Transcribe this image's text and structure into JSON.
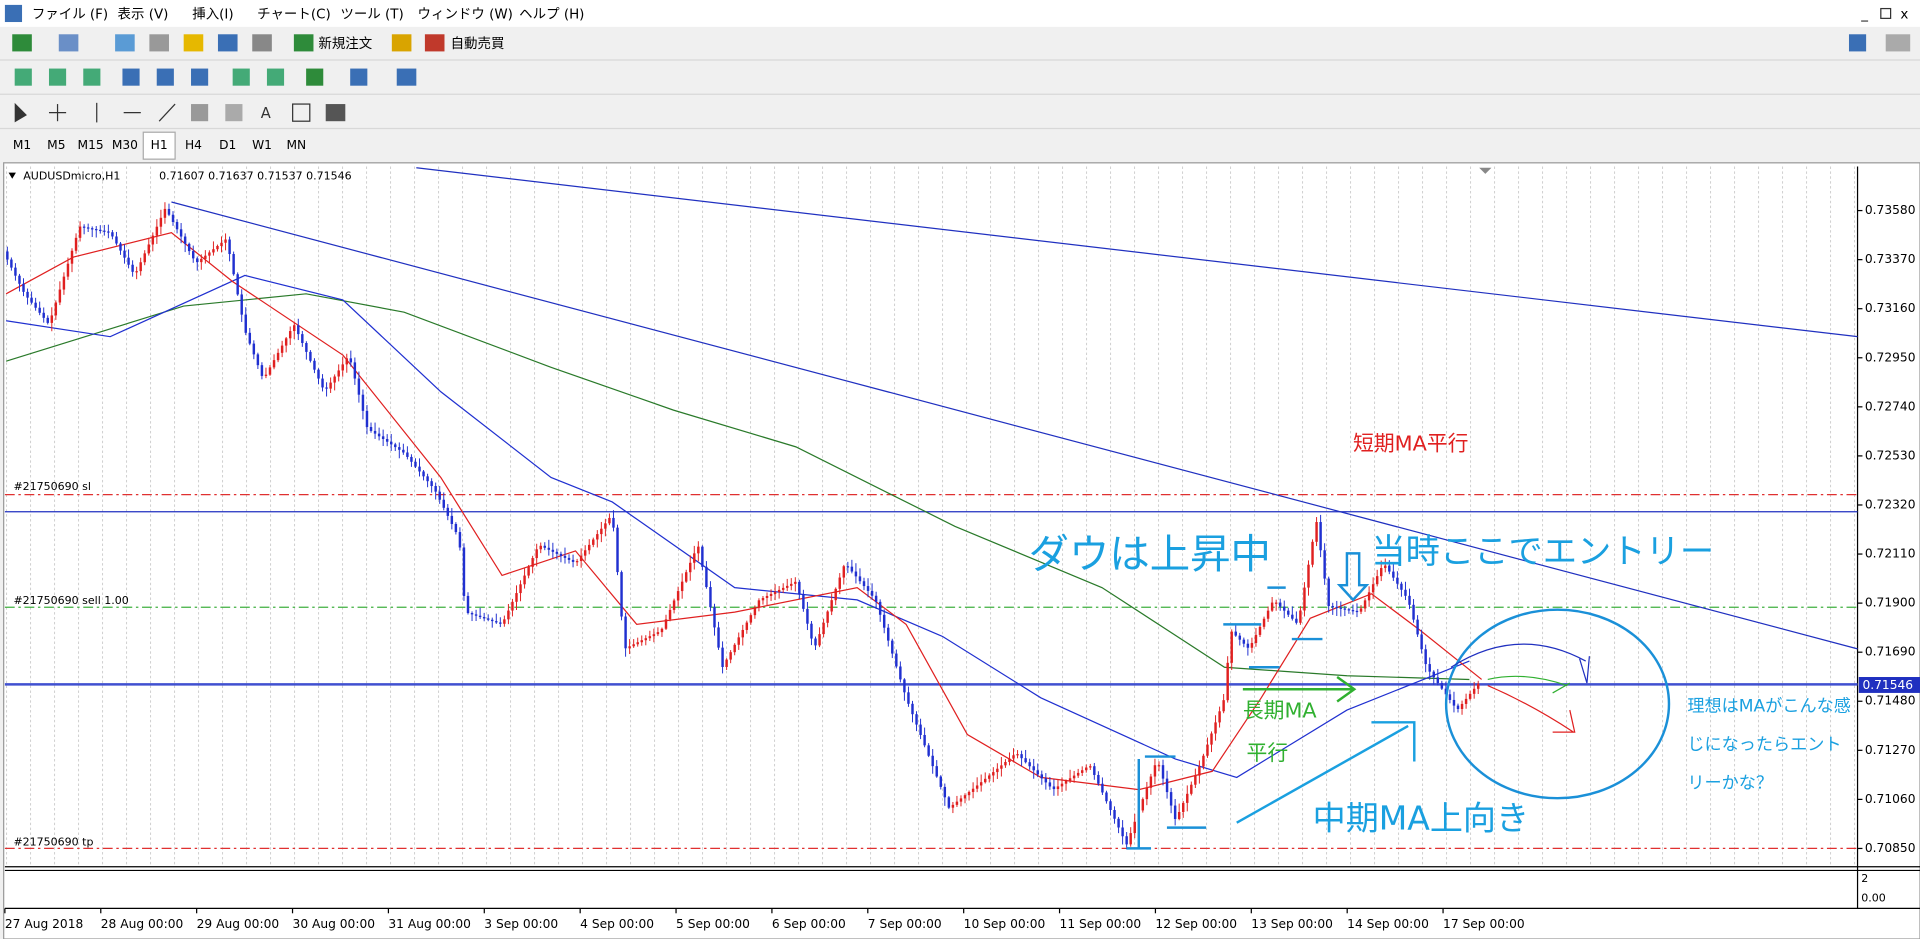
{
  "menu": [
    "ファイル (F)",
    "表示 (V)",
    "挿入(I)",
    "チャート(C)",
    "ツール (T)",
    "ウィンドウ (W)",
    "ヘルプ (H)"
  ],
  "toolbar": {
    "new_order": "新規注文",
    "auto_trading": "自動売買"
  },
  "timeframes": [
    "M1",
    "M5",
    "M15",
    "M30",
    "H1",
    "H4",
    "D1",
    "W1",
    "MN"
  ],
  "chart": {
    "symbol": "AUDUSDmicro,H1",
    "ohlc": "0.71607 0.71637 0.71537 0.71546",
    "price_ticks": [
      "0.73580",
      "0.73370",
      "0.73160",
      "0.72950",
      "0.72740",
      "0.72530",
      "0.72320",
      "0.72110",
      "0.71900",
      "0.71690",
      "0.71480",
      "0.71270",
      "0.71060",
      "0.70850"
    ],
    "current_price": "0.71546",
    "dates": [
      "27 Aug 2018",
      "28 Aug 00:00",
      "29 Aug 00:00",
      "30 Aug 00:00",
      "31 Aug 00:00",
      "3 Sep 00:00",
      "4 Sep 00:00",
      "5 Sep 00:00",
      "6 Sep 00:00",
      "7 Sep 00:00",
      "10 Sep 00:00",
      "11 Sep 00:00",
      "12 Sep 00:00",
      "13 Sep 00:00",
      "14 Sep 00:00",
      "17 Sep 00:00"
    ],
    "orders": {
      "sl": "#21750690 sl",
      "sell": "#21750690 sell 1.00",
      "tp": "#21750690 tp"
    },
    "sub_ticks": [
      "2",
      "0.00"
    ]
  },
  "annotations": {
    "short_ma": "短期MA平行",
    "dow": "ダウは上昇中",
    "entry": "当時ここでエントリー",
    "long_ma_1": "長期MA",
    "long_ma_2": "平行",
    "mid_ma": "中期MA上向き",
    "ideal": [
      "理想はMAがこんな感",
      "じになったらエント",
      "リーかな？"
    ]
  }
}
